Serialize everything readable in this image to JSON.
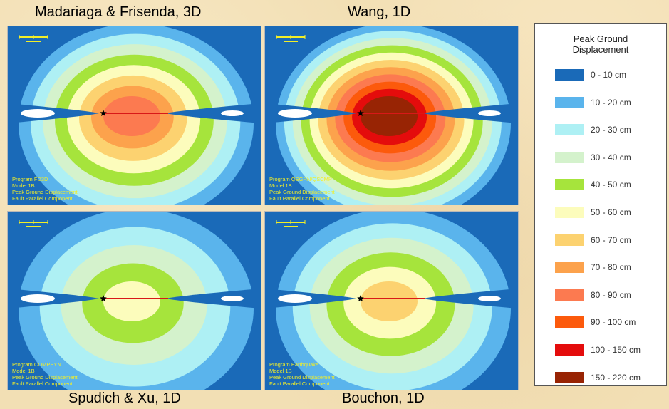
{
  "panels": [
    {
      "caption": "Madariaga & Frisenda, 3D",
      "lines": [
        "Program FD3D",
        "Model 1B",
        "Peak Ground Displacement",
        "Fault Parallel Component"
      ],
      "max_level": 8
    },
    {
      "caption": "Wang, 1D",
      "lines": [
        "Program QSGRN/QSCMP",
        "Model 1B",
        "Peak Ground Displacement",
        "Fault Parallel Component"
      ],
      "max_level": 11
    },
    {
      "caption": "Spudich & Xu, 1D",
      "lines": [
        "Program COMPSYN",
        "Model 1B",
        "Peak Ground Displacement",
        "Fault Parallel Component"
      ],
      "max_level": 5
    },
    {
      "caption": "Bouchon, 1D",
      "lines": [
        "Program Earthquake",
        "Model 1B",
        "Peak Ground Displacement",
        "Fault Parallel Component"
      ],
      "max_level": 6
    }
  ],
  "legend": {
    "title_line1": "Peak Ground",
    "title_line2": "Displacement",
    "items": [
      {
        "label": "0 - 10 cm",
        "color": "#1a6ab8"
      },
      {
        "label": "10 - 20 cm",
        "color": "#5ab4ec"
      },
      {
        "label": "20 - 30 cm",
        "color": "#aef0f4"
      },
      {
        "label": "30 - 40 cm",
        "color": "#d4f2cc"
      },
      {
        "label": "40 - 50 cm",
        "color": "#a6e43c"
      },
      {
        "label": "50 - 60 cm",
        "color": "#fcfcbc"
      },
      {
        "label": "60 - 70 cm",
        "color": "#fcd270"
      },
      {
        "label": "70 - 80 cm",
        "color": "#fca24c"
      },
      {
        "label": "80 - 90 cm",
        "color": "#fc7a50"
      },
      {
        "label": "90 - 100 cm",
        "color": "#fc5a0c"
      },
      {
        "label": "100 - 150 cm",
        "color": "#e40c0c"
      },
      {
        "label": "150 - 220 cm",
        "color": "#982404"
      }
    ]
  },
  "colors": {
    "fault_line": "#d81818",
    "epicenter": "#000000",
    "panel_text": "#f2ee28"
  }
}
